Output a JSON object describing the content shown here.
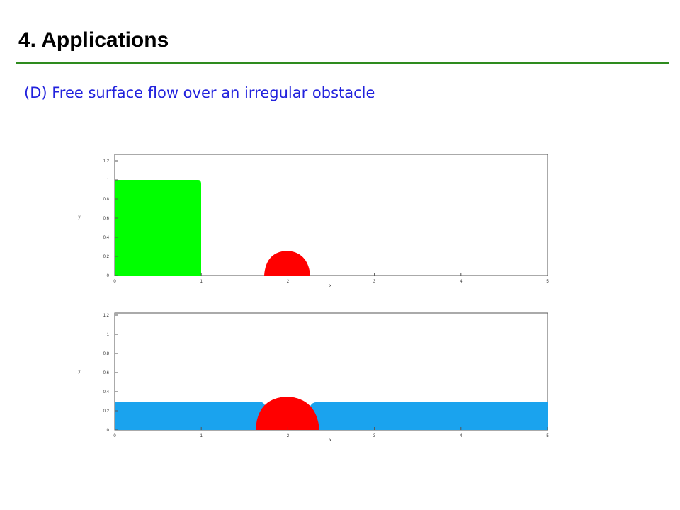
{
  "header": {
    "title": "4. Applications",
    "subtitle": "(D) Free surface flow over an irregular obstacle"
  },
  "figures": [
    {
      "xlabel": "x",
      "ylabel": "y",
      "xticks": [
        "0",
        "1",
        "2",
        "3",
        "4",
        "5"
      ],
      "yticks": [
        "0",
        "0.2",
        "0.4",
        "0.6",
        "0.8",
        "1",
        "1.2"
      ]
    },
    {
      "xlabel": "x",
      "ylabel": "y",
      "xticks": [
        "0",
        "1",
        "2",
        "3",
        "4",
        "5"
      ],
      "yticks": [
        "0",
        "0.2",
        "0.4",
        "0.6",
        "0.8",
        "1",
        "1.2"
      ]
    }
  ]
}
